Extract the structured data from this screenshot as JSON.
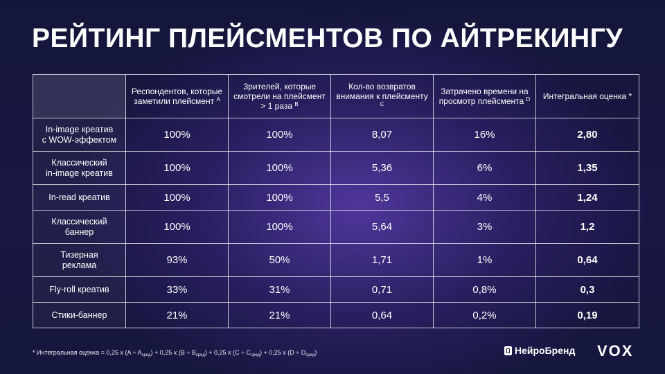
{
  "title": "РЕЙТИНГ ПЛЕЙСМЕНТОВ ПО АЙТРЕКИНГУ",
  "columns": [
    {
      "text": "Респондентов, которые заметили плейсмент",
      "sup": "A"
    },
    {
      "text": "Зрителей, которые смотрели на плейсмент > 1 раза",
      "sup": "B"
    },
    {
      "text": "Кол-во возвратов внимания к плейсменту",
      "sup": "C"
    },
    {
      "text": "Затрачено времени на просмотр плейсмента",
      "sup": "D"
    },
    {
      "text": "Интегральная оценка",
      "sup": "*"
    }
  ],
  "rows": [
    {
      "label_1": "In-image креатив",
      "label_2": "с WOW-эффектом",
      "a": "100%",
      "b": "100%",
      "c": "8,07",
      "d": "16%",
      "score": "2,80"
    },
    {
      "label_1": "Классический",
      "label_2": "in-image креатив",
      "a": "100%",
      "b": "100%",
      "c": "5,36",
      "d": "6%",
      "score": "1,35"
    },
    {
      "label_1": "In-read креатив",
      "label_2": "",
      "a": "100%",
      "b": "100%",
      "c": "5,5",
      "d": "4%",
      "score": "1,24"
    },
    {
      "label_1": "Классический",
      "label_2": "баннер",
      "a": "100%",
      "b": "100%",
      "c": "5,64",
      "d": "3%",
      "score": "1,2"
    },
    {
      "label_1": "Тизерная",
      "label_2": "реклама",
      "a": "93%",
      "b": "50%",
      "c": "1,71",
      "d": "1%",
      "score": "0,64"
    },
    {
      "label_1": "Fly-roll креатив",
      "label_2": "",
      "a": "33%",
      "b": "31%",
      "c": "0,71",
      "d": "0,8%",
      "score": "0,3"
    },
    {
      "label_1": "Стики-баннер",
      "label_2": "",
      "a": "21%",
      "b": "21%",
      "c": "0,64",
      "d": "0,2%",
      "score": "0,19"
    }
  ],
  "footnote": {
    "p1": "* Интегральная оценка = 0,25 x (A ÷ A",
    "p2": ") + 0,25 x (B ÷ B",
    "p3": ") + 0,25 x (C ÷ C",
    "p4": ") + 0,25 x (D ÷ D",
    "p5": ")",
    "sub": "сред"
  },
  "logos": {
    "neurobrand": "НейроБренд",
    "vox": "VOX"
  }
}
